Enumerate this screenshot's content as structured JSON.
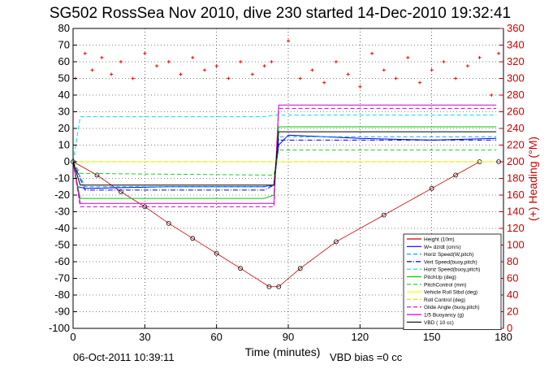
{
  "chart_data": {
    "type": "line",
    "title": "SG502 RossSea Nov 2010, dive 230 started 14-Dec-2010 19:32:41",
    "xlabel": "Time (minutes)",
    "ylabel_right": "(+) Heading (°M)",
    "xlim": [
      0,
      180
    ],
    "ylim": [
      -100,
      80
    ],
    "ylim_right": [
      0,
      360
    ],
    "x_ticks": [
      0,
      30,
      60,
      90,
      120,
      150,
      180
    ],
    "y_ticks": [
      -100,
      -90,
      -80,
      -70,
      -60,
      -50,
      -40,
      -30,
      -20,
      -10,
      0,
      10,
      20,
      30,
      40,
      50,
      60,
      70,
      80
    ],
    "y_ticks_right": [
      0,
      20,
      40,
      60,
      80,
      100,
      120,
      140,
      160,
      180,
      200,
      220,
      240,
      260,
      280,
      300,
      320,
      340,
      360
    ],
    "grid": true,
    "legend_position": "bottom-right",
    "footer_left": "06-Oct-2011 10:39:11",
    "footer_right": "VBD bias =0 cc",
    "colors": {
      "height": "#cc0000",
      "w": "#0000ff",
      "horiz_speed_w_pitch": "#00aaff",
      "vert_speed_buoy": "#0000cc",
      "horiz_speed_buoy": "#00e0e0",
      "pitch_up": "#00cc00",
      "pitch_control": "#22cc22",
      "vehicle_roll": "#ffff00",
      "roll_control": "#e0e000",
      "glide_angle": "#cc00cc",
      "buoyancy": "#cc00cc",
      "vbd": "#000000",
      "heading": "#ff0000"
    },
    "series": [
      {
        "name": "Height (10m)",
        "style": "solid-markers",
        "x": [
          0,
          10,
          20,
          30,
          40,
          50,
          60,
          70,
          82,
          86,
          95,
          110,
          130,
          150,
          160,
          170,
          178
        ],
        "values": [
          0,
          -8,
          -18,
          -27,
          -37,
          -46,
          -55,
          -64,
          -75,
          -75,
          -64,
          -48,
          -32,
          -16,
          -8,
          0,
          0
        ]
      },
      {
        "name": "W= dz/dt (cm/s)",
        "style": "solid",
        "x": [
          0,
          2,
          5,
          40,
          80,
          84,
          86,
          90,
          120,
          150,
          177
        ],
        "values": [
          0,
          -15,
          -16,
          -15,
          -15,
          -14,
          10,
          16,
          14,
          13,
          14
        ]
      },
      {
        "name": "Horiz Speed(W,pitch)",
        "style": "dashed",
        "x": [
          0,
          5,
          80,
          84,
          86,
          177
        ],
        "values": [
          0,
          -15,
          -15,
          -14,
          15,
          15
        ]
      },
      {
        "name": "Vert Speed(buoy,pitch)",
        "style": "dashdot",
        "x": [
          0,
          5,
          80,
          84,
          86,
          177
        ],
        "values": [
          0,
          -17,
          -17,
          -14,
          13,
          13
        ]
      },
      {
        "name": "Horiz Speed(buoy,pitch)",
        "style": "dashed",
        "x": [
          0,
          3,
          80,
          84,
          86,
          177
        ],
        "values": [
          0,
          27,
          27,
          28,
          28,
          28
        ]
      },
      {
        "name": "PitchUp (deg)",
        "style": "solid",
        "x": [
          0,
          3,
          80,
          84,
          86,
          177
        ],
        "values": [
          0,
          -22,
          -22,
          -20,
          21,
          21
        ]
      },
      {
        "name": "PitchControl (mm)",
        "style": "dashed",
        "x": [
          0,
          3,
          80,
          84,
          86,
          177
        ],
        "values": [
          0,
          -7,
          -8,
          -8,
          7,
          7
        ]
      },
      {
        "name": "Vehicle Roll Stbd (deg)",
        "style": "solid",
        "x": [
          0,
          5,
          80,
          84,
          86,
          177
        ],
        "values": [
          0,
          0,
          0,
          0,
          0,
          0
        ]
      },
      {
        "name": "Roll Control (deg)",
        "style": "dashed",
        "x": [
          0,
          5,
          80,
          84,
          86,
          177
        ],
        "values": [
          0,
          0,
          0,
          0,
          0,
          0
        ]
      },
      {
        "name": "Glide Angle (buoy,pitch)",
        "style": "dashed",
        "x": [
          0,
          3,
          80,
          84,
          86,
          177
        ],
        "values": [
          0,
          -27,
          -27,
          -27,
          32,
          32
        ]
      },
      {
        "name": "1/5 Buoyancy (g)",
        "style": "solid",
        "x": [
          0,
          3,
          80,
          84,
          86,
          177
        ],
        "values": [
          0,
          -25,
          -25,
          -25,
          34,
          34
        ]
      },
      {
        "name": "VBD ( 10 cc)",
        "style": "solid",
        "x": [
          0,
          3,
          80,
          84,
          86,
          177
        ],
        "values": [
          0,
          -14,
          -14,
          -14,
          18,
          18
        ]
      }
    ],
    "heading_series": {
      "name": "(+) Heading (°M)",
      "x": [
        1,
        5,
        8,
        12,
        16,
        20,
        25,
        30,
        35,
        40,
        45,
        50,
        55,
        60,
        65,
        70,
        75,
        80,
        83,
        90,
        95,
        100,
        105,
        110,
        115,
        120,
        125,
        130,
        135,
        140,
        145,
        150,
        155,
        160,
        165,
        170,
        175,
        178
      ],
      "values": [
        300,
        330,
        310,
        325,
        305,
        320,
        300,
        330,
        315,
        320,
        305,
        325,
        310,
        315,
        300,
        320,
        305,
        315,
        320,
        345,
        300,
        310,
        295,
        320,
        305,
        290,
        330,
        310,
        300,
        325,
        295,
        310,
        320,
        300,
        315,
        325,
        280,
        330
      ]
    }
  }
}
